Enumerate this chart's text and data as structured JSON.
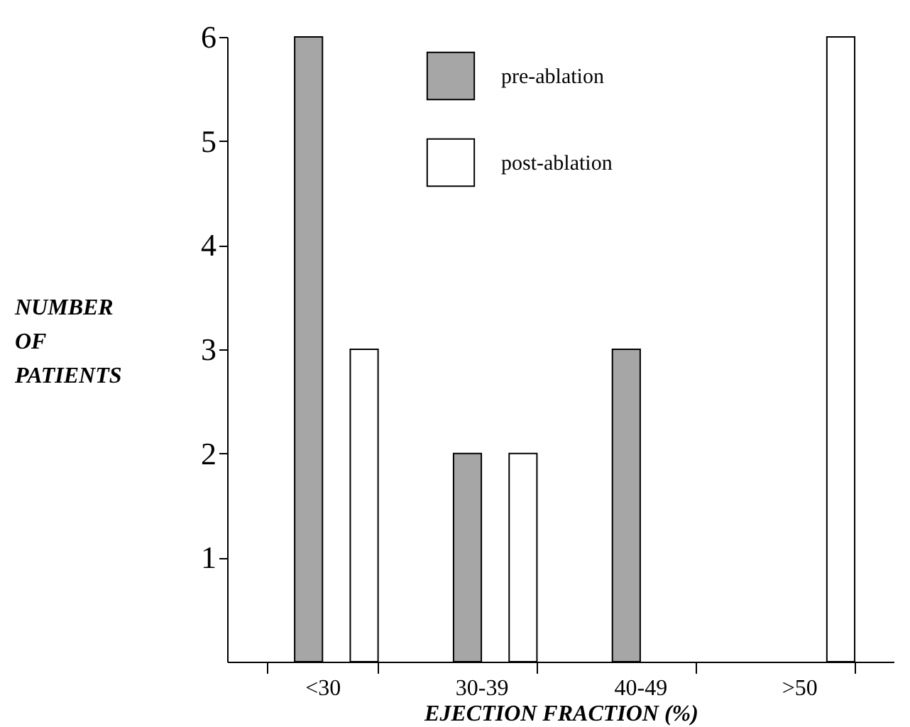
{
  "chart_data": {
    "type": "bar",
    "xlabel": "EJECTION FRACTION (%)",
    "ylabel": "NUMBER OF PATIENTS",
    "categories": [
      "<30",
      "30-39",
      "40-49",
      ">50"
    ],
    "series": [
      {
        "name": "pre-ablation",
        "color": "#a6a6a6",
        "values": [
          6,
          2,
          3,
          null
        ]
      },
      {
        "name": "post-ablation",
        "color": "#ffffff",
        "values": [
          3,
          2,
          null,
          6
        ]
      }
    ],
    "ylim": [
      0,
      6
    ],
    "yticks": [
      1,
      2,
      3,
      4,
      5,
      6
    ],
    "grid": false,
    "legend": "top"
  }
}
